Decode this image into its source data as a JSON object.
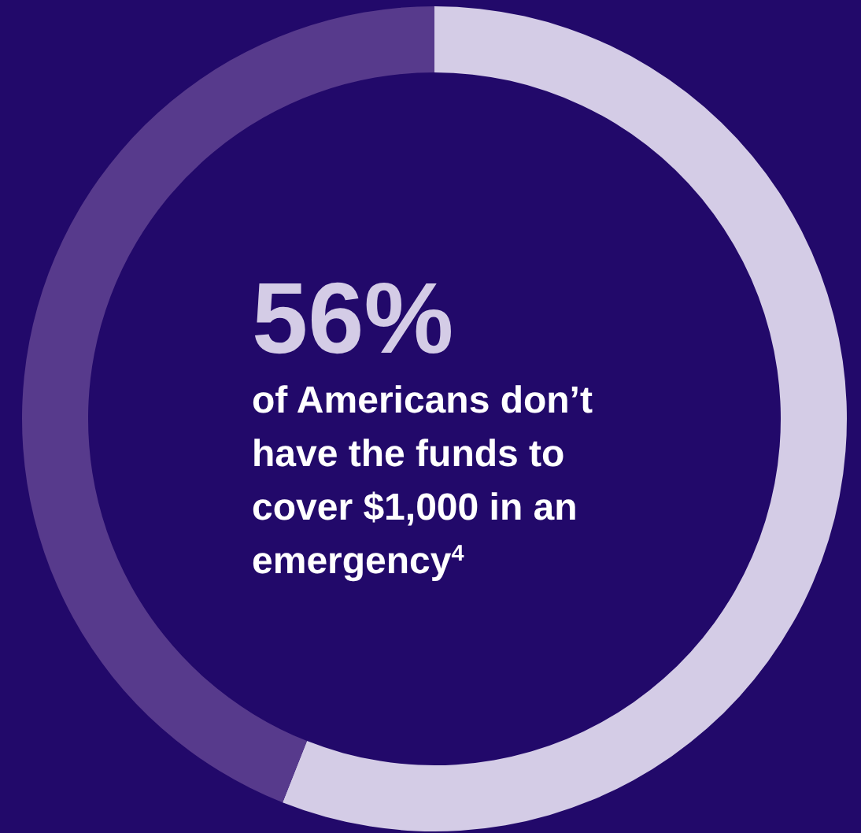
{
  "chart_data": {
    "type": "donut",
    "categories": [
      null,
      null
    ],
    "values": [
      56,
      44
    ],
    "colors": [
      "#d4cce6",
      "#573a8c"
    ],
    "title": "56%",
    "annotations": [
      "of Americans don’t have the funds to cover $1,000 in an emergency$^{4}$"
    ]
  }
}
